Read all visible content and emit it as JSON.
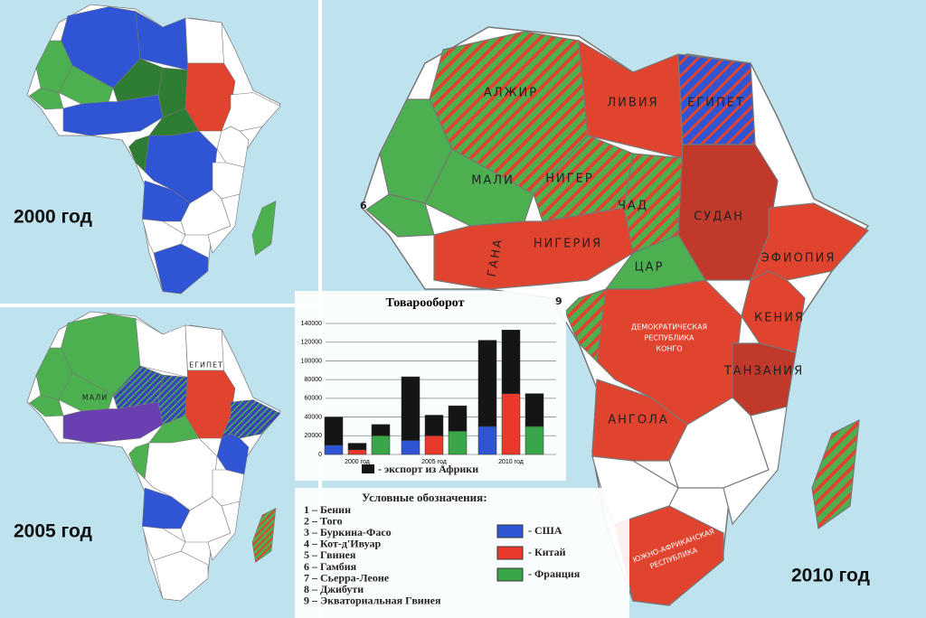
{
  "maps": {
    "years": [
      "2000 год",
      "2005 год",
      "2010 год"
    ],
    "labels_2010": [
      "АЛЖИР",
      "ЛИВИЯ",
      "ЕГИПЕТ",
      "МАЛИ",
      "НИГЕР",
      "ЧАД",
      "СУДАН",
      "НИГЕРИЯ",
      "ГАНА",
      "ЦАР",
      "ЭФИОПИЯ",
      "КЕНИЯ",
      "ТАНЗАНИЯ",
      "ДЕМОКРАТИЧЕСКАЯ",
      "РЕСПУБЛИКА",
      "КОНГО",
      "АНГОЛА",
      "ЮЖНО-АФРИКАНСКАЯ",
      "РЕСПУБЛИКА"
    ],
    "labels_2005": [
      "МАЛИ",
      "ЕГИПЕТ"
    ],
    "markers": [
      "6",
      "9"
    ]
  },
  "chart_data": {
    "type": "bar",
    "title": "Товарооборот",
    "categories": [
      "2000 год",
      "2005 год",
      "2010 год"
    ],
    "ylim": [
      0,
      140000
    ],
    "yticks": [
      0,
      20000,
      40000,
      60000,
      80000,
      100000,
      120000,
      140000
    ],
    "grid": true,
    "series": [
      {
        "name": "- США",
        "color": "#2f55d4",
        "values": [
          10000,
          15000,
          30000
        ]
      },
      {
        "name": "- Китай",
        "color": "#e8392b",
        "values": [
          5000,
          20000,
          65000
        ]
      },
      {
        "name": "- Франция",
        "color": "#3aa64a",
        "values": [
          20000,
          25000,
          30000
        ]
      }
    ],
    "export": {
      "name": "- экспорт из Африки",
      "color": "#151515",
      "values": [
        [
          30000,
          7000,
          12000
        ],
        [
          68000,
          22000,
          27000
        ],
        [
          92000,
          68000,
          35000
        ]
      ]
    }
  },
  "legend": {
    "title": "Условные обозначения:",
    "items": [
      "1 – Бенин",
      "2 – Того",
      "3 – Буркина-Фасо",
      "4 – Кот-д'Ивуар",
      "5 – Гвинея",
      "6 – Гамбия",
      "7 – Сьерра-Леоне",
      "8 – Джибути",
      "9 – Экваториальная Гвинея"
    ]
  }
}
